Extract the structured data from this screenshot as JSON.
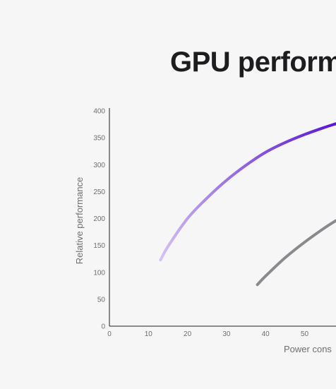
{
  "chart_data": {
    "type": "line",
    "title": "GPU performa",
    "xlabel": "Power cons",
    "ylabel": "Relative performance",
    "xlim": [
      0,
      58
    ],
    "ylim": [
      0,
      400
    ],
    "x_ticks": [
      0,
      10,
      20,
      30,
      40,
      50
    ],
    "y_ticks": [
      0,
      50,
      100,
      150,
      200,
      250,
      300,
      350,
      400
    ],
    "grid": false,
    "series": [
      {
        "color_start": "#d6c2f3",
        "color_end": "#5a17d6",
        "x": [
          13.1,
          15,
          20,
          25,
          30,
          35,
          40,
          45,
          50,
          55,
          58
        ],
        "y": [
          123,
          148,
          200,
          238,
          271,
          299,
          323,
          341,
          356,
          369,
          376
        ]
      },
      {
        "color_start": "#8a8a8e",
        "color_end": "#8a8a8e",
        "x": [
          37.9,
          40,
          45,
          50,
          55,
          58
        ],
        "y": [
          77,
          93,
          127,
          156,
          182,
          196
        ]
      }
    ]
  }
}
